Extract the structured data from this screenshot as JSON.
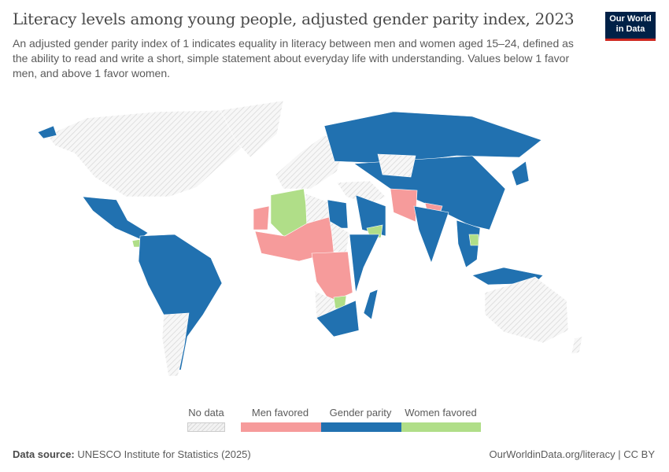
{
  "header": {
    "title": "Literacy levels among young people, adjusted gender parity index, 2023",
    "subtitle": "An adjusted gender parity index of 1 indicates equality in literacy between men and women aged 15–24, defined as the ability to read and write a short, simple statement about everyday life with understanding. Values below 1 favor men, and above 1 favor women.",
    "logo_text": "Our World in Data"
  },
  "legend": {
    "no_data": "No data",
    "categories": [
      {
        "label": "Men favored",
        "color": "#f69b9b"
      },
      {
        "label": "Gender parity",
        "color": "#2171b0"
      },
      {
        "label": "Women favored",
        "color": "#b0de88"
      }
    ],
    "no_data_color": "#e8e8e8"
  },
  "footer": {
    "source_label": "Data source:",
    "source": "UNESCO Institute for Statistics (2025)",
    "link": "OurWorldinData.org/literacy | CC BY"
  }
}
